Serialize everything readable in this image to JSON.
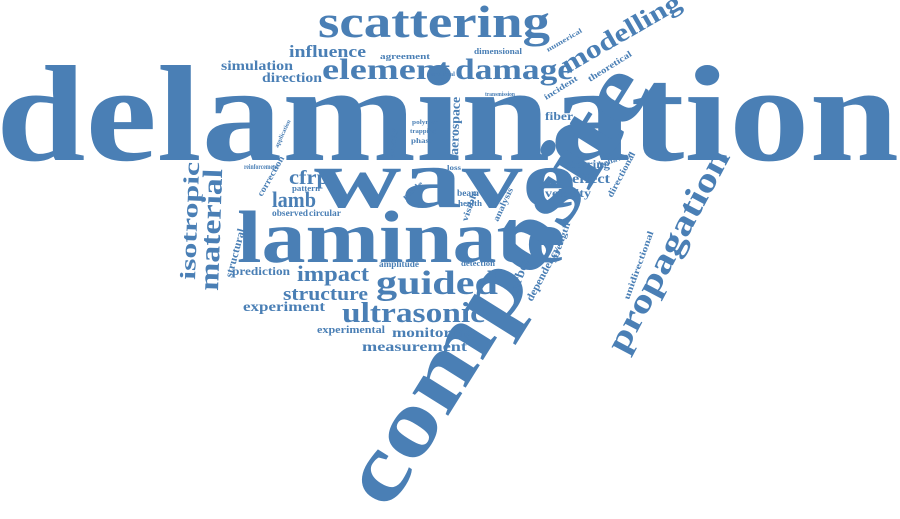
{
  "color": "#4a7fb5",
  "words": [
    "delamination",
    "wave",
    "laminate",
    "composite",
    "scattering",
    "propagation",
    "damage",
    "element",
    "modelling",
    "guided",
    "ultrasonic",
    "material",
    "isotropic",
    "impact",
    "structure",
    "lamb",
    "cfrp",
    "experiment",
    "monitoring",
    "measurement",
    "experimental",
    "influence",
    "simulation",
    "direction",
    "agreement",
    "dimensional",
    "numerical",
    "theoretical",
    "incident",
    "fiber",
    "steering",
    "effect",
    "behavior",
    "directional",
    "velocity",
    "carbon",
    "dependency",
    "strength",
    "unidirectional",
    "structural",
    "prediction",
    "correction",
    "reinforcement",
    "observed",
    "circular",
    "pattern",
    "amplitude",
    "detection",
    "beam",
    "health",
    "visible",
    "aerospace",
    "polymer",
    "phase",
    "trapping",
    "energy",
    "mode",
    "artificial",
    "transmission",
    "application",
    "analysis",
    "loss"
  ]
}
